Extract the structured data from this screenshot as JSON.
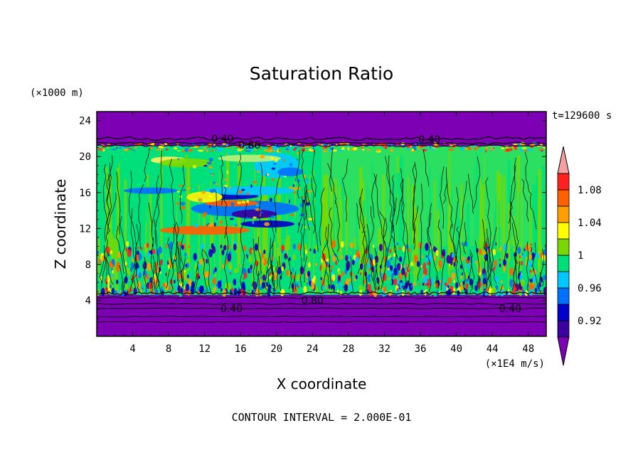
{
  "chart_data": {
    "type": "heatmap",
    "title": "Saturation Ratio",
    "time_label": "t=129600 s",
    "xlabel": "X coordinate",
    "ylabel": "Z coordinate",
    "x_units": "(×1E4 m/s)",
    "y_units": "(×1000 m)",
    "footer": "CONTOUR INTERVAL = 2.000E-01",
    "xlim": [
      0,
      50
    ],
    "ylim": [
      0,
      25
    ],
    "x_ticks": [
      4,
      8,
      12,
      16,
      20,
      24,
      28,
      32,
      36,
      40,
      44,
      48
    ],
    "y_ticks": [
      4,
      8,
      12,
      16,
      20,
      24
    ],
    "colorbar": {
      "levels": [
        0.9,
        0.92,
        0.94,
        0.96,
        0.98,
        1.0,
        1.02,
        1.04,
        1.06,
        1.08,
        1.1
      ],
      "labels": [
        "0.92",
        "0.96",
        "1",
        "1.04",
        "1.08"
      ],
      "colors": [
        "#7d00b4",
        "#3a00a0",
        "#0000c8",
        "#0070ff",
        "#00c8ff",
        "#00e07a",
        "#7ad800",
        "#ffff00",
        "#ffa000",
        "#ff6000",
        "#ff2020",
        "#f5a0a0"
      ]
    },
    "contour_labels": [
      {
        "text": "0.40",
        "x": 14,
        "z": 22
      },
      {
        "text": "0.80",
        "x": 17,
        "z": 21.3
      },
      {
        "text": "0.40",
        "x": 37,
        "z": 21.9
      },
      {
        "text": "0.80",
        "x": 24,
        "z": 4.0
      },
      {
        "text": "0.40",
        "x": 15,
        "z": 3.1
      },
      {
        "text": "0.40",
        "x": 46,
        "z": 3.1
      }
    ],
    "regions": [
      {
        "x": [
          0,
          50
        ],
        "z": [
          22,
          25
        ],
        "value": "<0.90"
      },
      {
        "x": [
          0,
          50
        ],
        "z": [
          0,
          4.5
        ],
        "value": "<0.90"
      },
      {
        "x": [
          0,
          50
        ],
        "z": [
          5,
          21
        ],
        "value": "~1.00"
      },
      {
        "x": [
          10,
          20
        ],
        "z": [
          13,
          15.5
        ],
        "value": "0.92-0.96"
      },
      {
        "x": [
          0,
          50
        ],
        "z": [
          5,
          10
        ],
        "value": "0.90-1.10 mixed"
      }
    ]
  }
}
